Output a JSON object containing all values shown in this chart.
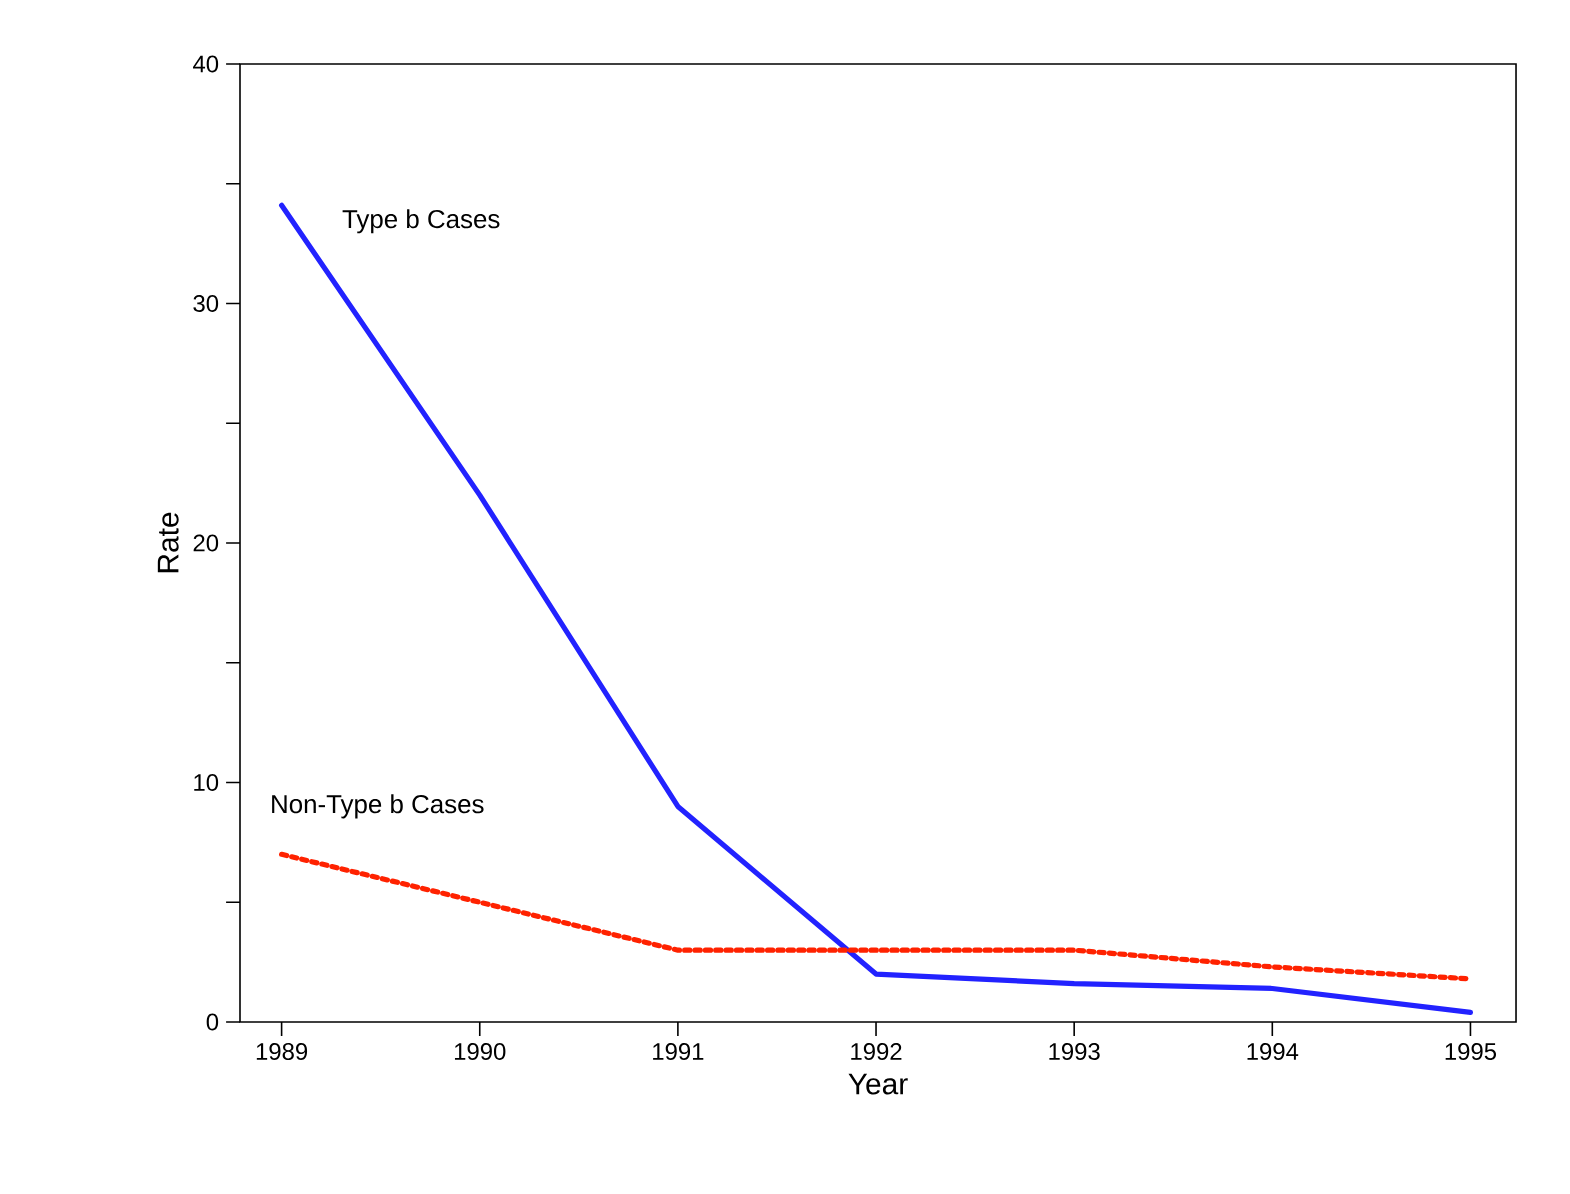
{
  "chart_data": {
    "type": "line",
    "xlabel": "Year",
    "ylabel": "Rate",
    "x": [
      1989,
      1990,
      1991,
      1992,
      1993,
      1994,
      1995
    ],
    "series": [
      {
        "name": "Type b Cases",
        "color": "#2222ff",
        "line_style": "solid",
        "values": [
          34.1,
          22.0,
          9.0,
          2.0,
          1.6,
          1.4,
          0.4
        ]
      },
      {
        "name": "Non-Type b Cases",
        "color": "#ff2200",
        "line_style": "dotted",
        "values": [
          7.0,
          5.0,
          3.0,
          3.0,
          3.0,
          2.3,
          1.8
        ]
      }
    ],
    "xlim": [
      1988.79,
      1995.23
    ],
    "ylim": [
      0,
      40
    ],
    "xticks": [
      1989,
      1990,
      1991,
      1992,
      1993,
      1994,
      1995
    ],
    "yticks": [
      0,
      {
        "value": 5,
        "label": null
      },
      10,
      {
        "value": 15,
        "label": null
      },
      20,
      {
        "value": 25,
        "label": null
      },
      30,
      {
        "value": 35,
        "label": null
      },
      40
    ]
  }
}
